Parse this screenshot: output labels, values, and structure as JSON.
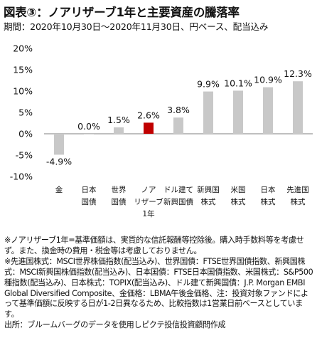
{
  "title": "図表③：ノアリザーブ1年と主要資産の騰落率",
  "subtitle": "期間：2020年10月30日～2020年11月30日、円ベース、配当込み",
  "colors": {
    "highlight": "#c00000",
    "bar": "#c8c8c8",
    "text": "#111111",
    "axis": "#555555"
  },
  "chart_data": {
    "type": "bar",
    "ylim": [
      -10,
      20
    ],
    "yticks": [
      -10,
      -5,
      0,
      5,
      10,
      15,
      20
    ],
    "ytick_labels": [
      "-10%",
      "-5%",
      "0%",
      "5%",
      "10%",
      "15%",
      "20%"
    ],
    "grid": false,
    "categories": [
      [
        "金"
      ],
      [
        "日本",
        "国債"
      ],
      [
        "世界",
        "国債"
      ],
      [
        "ノア",
        "リザーブ",
        "1年"
      ],
      [
        "ドル建て",
        "新興国債"
      ],
      [
        "新興国",
        "株式"
      ],
      [
        "米国",
        "株式"
      ],
      [
        "日本",
        "株式"
      ],
      [
        "先進国",
        "株式"
      ]
    ],
    "values": [
      -4.9,
      0.0,
      1.5,
      2.6,
      3.8,
      9.9,
      10.1,
      10.9,
      12.3
    ],
    "data_labels": [
      "-4.9%",
      "0.0%",
      "1.5%",
      "2.6%",
      "3.8%",
      "9.9%",
      "10.1%",
      "10.9%",
      "12.3%"
    ],
    "highlight_index": 3
  },
  "notes": [
    "※ノアリザーブ1年=基準価額は、実質的な信託報酬等控除後。購入時手数料等を考慮せず。また、換金時の費用・税金等は考慮しておりません。",
    "※先進国株式：MSCI世界株価指数(配当込み)、世界国債：FTSE世界国債指数、新興国株式：MSCI新興国株価指数(配当込み)、日本国債：FTSE日本国債指数、米国株式：S&P500種指数(配当込み)、日本株式：TOPIX(配当込み)、ドル建て新興国債：J.P. Morgan EMBI Global Diversified Composite、金価格：LBMA午後金価格、注：投資対象ファンドによって基準価額に反映する日が1-2日異なるため、比較指数は1営業日前ベースとしています。"
  ],
  "source": "出所：ブルームバーグのデータを使用しピクテ投信投資顧問作成"
}
